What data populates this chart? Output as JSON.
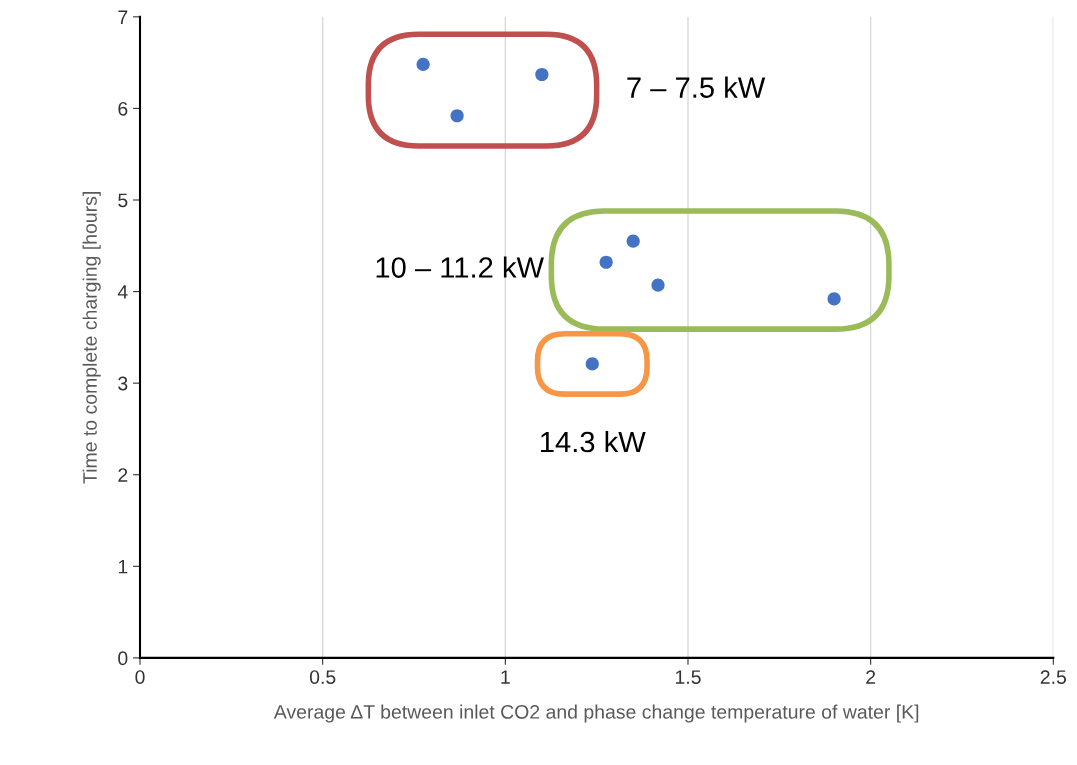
{
  "chart_data": {
    "type": "scatter",
    "xlabel": "Average ΔT between inlet CO2 and phase change temperature of water [K]",
    "ylabel": "Time to complete charging [hours]",
    "series": [
      {
        "name": "7 – 7.5 kW",
        "color": "#4472c4",
        "x": [
          0.775,
          0.868,
          1.1
        ],
        "values": [
          6.48,
          5.92,
          6.37
        ]
      },
      {
        "name": "10 – 11.2 kW",
        "color": "#4472c4",
        "x": [
          1.276,
          1.35,
          1.418,
          1.9
        ],
        "values": [
          4.32,
          4.55,
          4.07,
          3.92
        ]
      },
      {
        "name": "14.3 kW",
        "color": "#4472c4",
        "x": [
          1.238
        ],
        "values": [
          3.21
        ]
      }
    ],
    "xlim": [
      0,
      2.5
    ],
    "xticks": [
      0,
      0.5,
      1,
      1.5,
      2,
      2.5
    ],
    "ylim": [
      0,
      7
    ],
    "yticks": [
      0,
      1,
      2,
      3,
      4,
      5,
      6,
      7
    ],
    "grid": "x",
    "marker": "circle"
  }
}
